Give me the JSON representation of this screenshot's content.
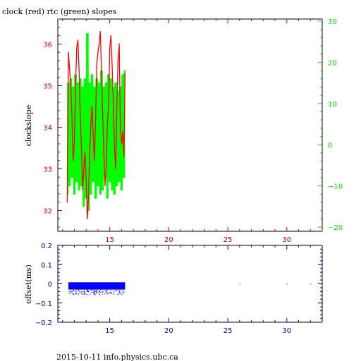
{
  "chart_data": [
    {
      "type": "line",
      "title": "clock (red) rtc (green) slopes",
      "ylabel": "clockslope",
      "xlim": [
        10.6,
        33
      ],
      "ylim": [
        31.5,
        36.6
      ],
      "y2lim": [
        -21,
        30.5
      ],
      "xticks": [
        15,
        20,
        25,
        30
      ],
      "yticks": [
        32,
        33,
        34,
        35,
        36
      ],
      "y2ticks": [
        -20,
        -10,
        0,
        10,
        20,
        30
      ],
      "axis_colors": {
        "x": "#cc0000",
        "y": "#cc0000",
        "y2": "#00dd00"
      },
      "series": [
        {
          "name": "clock",
          "color": "#ff0000",
          "axis": "left",
          "x": [
            11.4,
            11.5,
            11.6,
            11.7,
            11.8,
            11.9,
            12.0,
            12.1,
            12.2,
            12.3,
            12.4,
            12.5,
            12.6,
            12.7,
            12.8,
            12.9,
            13.0,
            13.1,
            13.2,
            13.3,
            13.4,
            13.5,
            13.6,
            13.7,
            13.8,
            13.9,
            14.0,
            14.1,
            14.2,
            14.3,
            14.4,
            14.5,
            14.6,
            14.7,
            14.8,
            14.9,
            15.0,
            15.1,
            15.2,
            15.3,
            15.4,
            15.5,
            15.6,
            15.7,
            15.8,
            15.9,
            16.0,
            16.1,
            16.2,
            16.3
          ],
          "y": [
            32.2,
            35.8,
            35.4,
            35.0,
            34.2,
            33.2,
            33.6,
            35.0,
            35.9,
            36.1,
            35.4,
            34.3,
            33.5,
            32.5,
            33.0,
            33.4,
            32.7,
            31.8,
            32.3,
            33.4,
            34.1,
            34.5,
            33.8,
            33.2,
            34.2,
            35.5,
            35.8,
            36.0,
            36.3,
            35.4,
            34.3,
            33.4,
            32.6,
            33.0,
            34.1,
            34.5,
            35.9,
            36.2,
            35.5,
            34.6,
            33.5,
            33.0,
            34.5,
            35.6,
            36.0,
            34.0,
            33.6,
            33.9,
            33.3,
            35.3
          ]
        },
        {
          "name": "rtc",
          "color": "#00ff00",
          "axis": "right",
          "x": [
            11.4,
            11.5,
            11.6,
            11.7,
            11.8,
            11.9,
            12.0,
            12.1,
            12.2,
            12.3,
            12.4,
            12.5,
            12.6,
            12.7,
            12.8,
            12.9,
            13.0,
            13.1,
            13.2,
            13.3,
            13.4,
            13.5,
            13.6,
            13.7,
            13.8,
            13.9,
            14.0,
            14.1,
            14.2,
            14.3,
            14.4,
            14.5,
            14.6,
            14.7,
            14.8,
            14.9,
            15.0,
            15.1,
            15.2,
            15.3,
            15.4,
            15.5,
            15.6,
            15.7,
            15.8,
            15.9,
            16.0,
            16.1,
            16.2,
            16.3
          ],
          "y": [
            -12,
            15,
            -10,
            16,
            -8,
            14,
            -12,
            17,
            -9,
            15,
            -11,
            16,
            -10,
            14,
            -15,
            16,
            -13,
            27,
            -16,
            15,
            -12,
            17,
            -9,
            14,
            -13,
            16,
            -10,
            15,
            -12,
            18,
            -11,
            14,
            -8,
            15,
            -13,
            17,
            -9,
            16,
            -11,
            14,
            -12,
            15,
            -10,
            13,
            -9,
            14,
            -11,
            17,
            -8,
            18
          ]
        }
      ]
    },
    {
      "type": "scatter",
      "ylabel": "offset(ms)",
      "xlim": [
        10.6,
        33
      ],
      "ylim": [
        -0.2,
        0.2
      ],
      "xticks": [
        15,
        20,
        25,
        30
      ],
      "yticks": [
        -0.2,
        -0.1,
        0,
        0.1,
        0.2
      ],
      "ytick_labels": [
        "−0.2",
        "−0.1",
        "0",
        "0.1",
        "0.2"
      ],
      "axis_color": "#0000aa",
      "series": [
        {
          "name": "offset",
          "color": "#0000ff",
          "band": {
            "x_start": 11.5,
            "x_end": 16.3,
            "y_low": -0.03,
            "y_high": 0.008
          },
          "scatter_below": {
            "y_min": -0.055,
            "y_max": -0.03
          },
          "isolated_points": [
            {
              "x": 26.0,
              "y": 0.0
            },
            {
              "x": 30.0,
              "y": 0.0
            },
            {
              "x": 32.0,
              "y": 0.0
            }
          ]
        }
      ]
    }
  ],
  "footer": "2015-10-11 info.physics.ubc.ca"
}
